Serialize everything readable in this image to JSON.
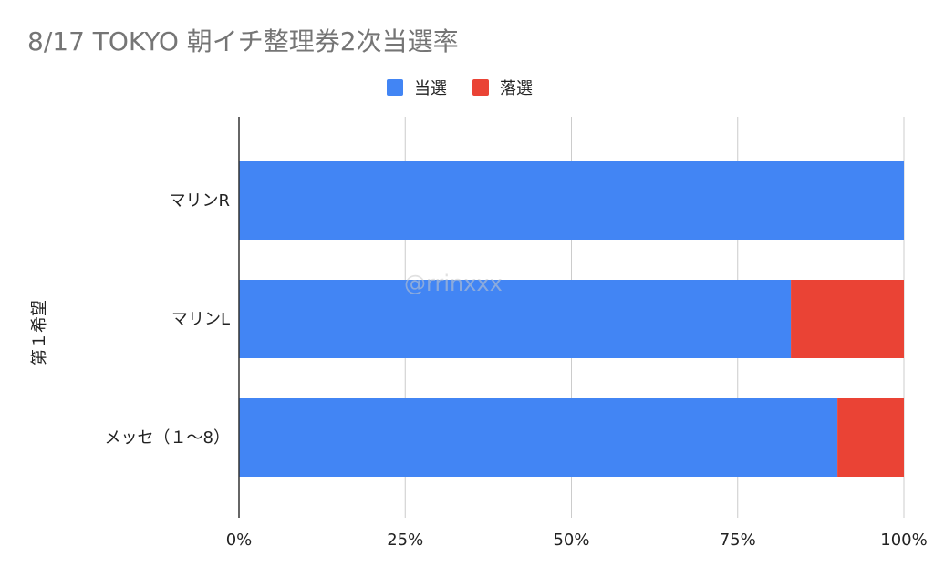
{
  "chart_data": {
    "type": "bar",
    "orientation": "horizontal",
    "stacked": true,
    "title": "8/17 TOKYO 朝イチ整理券2次当選率",
    "ylabel": "第１希望",
    "categories": [
      "マリンR",
      "マリンL",
      "メッセ（１～8）"
    ],
    "series": [
      {
        "name": "当選",
        "color": "#4285F4",
        "values": [
          100,
          83,
          90
        ]
      },
      {
        "name": "落選",
        "color": "#EA4335",
        "values": [
          0,
          17,
          10
        ]
      }
    ],
    "xlim": [
      0,
      100
    ],
    "xticks": [
      "0%",
      "25%",
      "50%",
      "75%",
      "100%"
    ],
    "grid": true,
    "legend_position": "top-center"
  },
  "watermark": "@rrinxxx"
}
